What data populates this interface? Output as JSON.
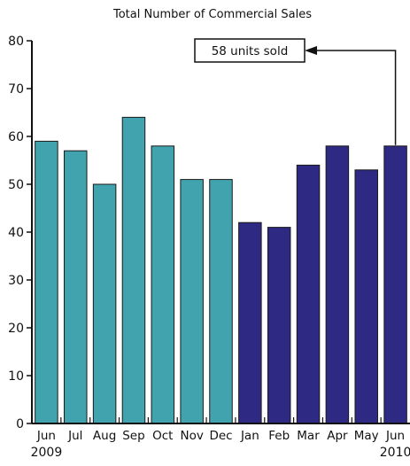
{
  "chart_data": {
    "type": "bar",
    "title": "Total Number of Commercial Sales",
    "xlabel": "",
    "ylabel": "",
    "categories": [
      "Jun",
      "Jul",
      "Aug",
      "Sep",
      "Oct",
      "Nov",
      "Dec",
      "Jan",
      "Feb",
      "Mar",
      "Apr",
      "May",
      "Jun"
    ],
    "values": [
      59,
      57,
      50,
      64,
      58,
      51,
      51,
      42,
      41,
      54,
      58,
      53,
      58
    ],
    "bar_colors": [
      "#41a3ad",
      "#41a3ad",
      "#41a3ad",
      "#41a3ad",
      "#41a3ad",
      "#41a3ad",
      "#41a3ad",
      "#2e2a84",
      "#2e2a84",
      "#2e2a84",
      "#2e2a84",
      "#2e2a84",
      "#2e2a84"
    ],
    "ylim": [
      0,
      80
    ],
    "yticks": [
      0,
      10,
      20,
      30,
      40,
      50,
      60,
      70,
      80
    ],
    "year_labels": [
      {
        "text": "2009",
        "category_index": 0
      },
      {
        "text": "2010",
        "category_index": 12
      }
    ],
    "annotation": {
      "text": "58 units sold",
      "target_index": 12
    },
    "grid": false,
    "legend": "none"
  }
}
